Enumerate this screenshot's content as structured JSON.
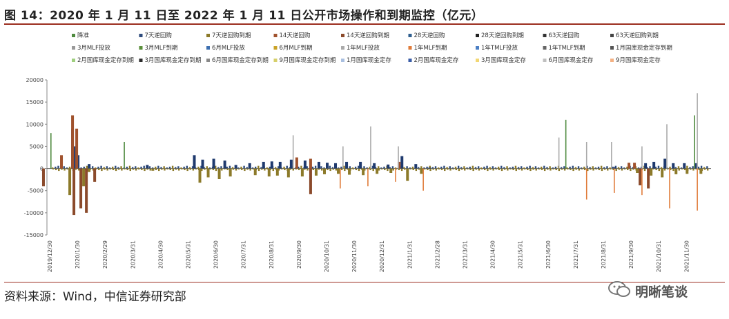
{
  "header": {
    "title": "图 14：2020 年 1 月 11 日至 2022 年 1 月 11 日公开市场操作和到期监控（亿元）"
  },
  "footer": {
    "source": "资料来源：Wind，中信证券研究部",
    "brand": "明晰笔谈"
  },
  "colors": {
    "rule": "#9b2c1e"
  },
  "chart_data": {
    "type": "bar",
    "title": "",
    "xlabel": "",
    "ylabel": "",
    "ylim": [
      -15000,
      20000
    ],
    "yticks": [
      20000,
      15000,
      10000,
      5000,
      0,
      -5000,
      -10000,
      -15000
    ],
    "grid": false,
    "legend_position": "top",
    "x_ticks": [
      "2019/12/30",
      "2020/1/30",
      "2020/2/29",
      "2020/3/31",
      "2020/4/30",
      "2020/5/31",
      "2020/6/30",
      "2020/7/31",
      "2020/8/31",
      "2020/9/30",
      "2020/10/31",
      "2020/11/30",
      "2020/12/31",
      "2021/1/31",
      "2021/2/28",
      "2021/3/31",
      "2021/4/30",
      "2021/5/31",
      "2021/6/30",
      "2021/7/31",
      "2021/8/31",
      "2021/9/30",
      "2021/10/31",
      "2021/11/30"
    ],
    "legend": [
      {
        "name": "降准",
        "color": "#4e8a3e",
        "marker": "square"
      },
      {
        "name": "7天逆回购",
        "color": "#2e4b7c",
        "marker": "square"
      },
      {
        "name": "7天逆回购到期",
        "color": "#8c7a2a",
        "marker": "square"
      },
      {
        "name": "14天逆回购",
        "color": "#a0522d",
        "marker": "square"
      },
      {
        "name": "14天逆回购到期",
        "color": "#8b4a2b",
        "marker": "square"
      },
      {
        "name": "28天逆回购",
        "color": "#2f5f8f",
        "marker": "square"
      },
      {
        "name": "28天逆回购到期",
        "color": "#222222",
        "marker": "square"
      },
      {
        "name": "63天逆回购",
        "color": "#333333",
        "marker": "square"
      },
      {
        "name": "63天逆回购到期",
        "color": "#444444",
        "marker": "square"
      },
      {
        "name": "3月MLF投放",
        "color": "#999999",
        "marker": "square"
      },
      {
        "name": "3月MLF到期",
        "color": "#5a8f3a",
        "marker": "square"
      },
      {
        "name": "6月MLF投放",
        "color": "#3d6fb0",
        "marker": "square"
      },
      {
        "name": "6月MLF到期",
        "color": "#c9a227",
        "marker": "square"
      },
      {
        "name": "1年MLF投放",
        "color": "#aaaaaa",
        "marker": "square"
      },
      {
        "name": "1年MLF到期",
        "color": "#e07b39",
        "marker": "square"
      },
      {
        "name": "1年TMLF投放",
        "color": "#4b7fc4",
        "marker": "square"
      },
      {
        "name": "1年TMLF到期",
        "color": "#666666",
        "marker": "square"
      },
      {
        "name": "1月国库现金定存到期",
        "color": "#555555",
        "marker": "square"
      },
      {
        "name": "2月国库现金定存到期",
        "color": "#9fcf7f",
        "marker": "square"
      },
      {
        "name": "3月国库现金定存到期",
        "color": "#2b2b2b",
        "marker": "square"
      },
      {
        "name": "6月国库现金定存到期",
        "color": "#888888",
        "marker": "square"
      },
      {
        "name": "9月国库现金定存到期",
        "color": "#d6cf6a",
        "marker": "square"
      },
      {
        "name": "1月国库现金定存",
        "color": "#a9bfe0",
        "marker": "square"
      },
      {
        "name": "2月国库现金定存",
        "color": "#3b5ea8",
        "marker": "square"
      },
      {
        "name": "3月国库现金定存",
        "color": "#f2d774",
        "marker": "square"
      },
      {
        "name": "6月国库现金定存",
        "color": "#bfbfbf",
        "marker": "square"
      },
      {
        "name": "9月国库现金定存",
        "color": "#f4b183",
        "marker": "square"
      }
    ],
    "series": [
      {
        "name": "7天逆回购",
        "color": "#1f3a6e",
        "points": [
          [
            -0.4,
            0
          ],
          [
            0.7,
            9000
          ],
          [
            0.8,
            5000
          ],
          [
            0.9,
            3000
          ],
          [
            1.3,
            1000
          ],
          [
            3.4,
            800
          ],
          [
            5.1,
            3000
          ],
          [
            5.4,
            2000
          ],
          [
            5.8,
            2200
          ],
          [
            6.2,
            1800
          ],
          [
            6.6,
            800
          ],
          [
            7.1,
            1200
          ],
          [
            7.6,
            1500
          ],
          [
            7.9,
            1600
          ],
          [
            8.2,
            1500
          ],
          [
            8.6,
            2000
          ],
          [
            9.1,
            1800
          ],
          [
            9.6,
            1500
          ],
          [
            9.9,
            1300
          ],
          [
            10.2,
            1200
          ],
          [
            10.6,
            1500
          ],
          [
            11.1,
            1500
          ],
          [
            11.6,
            1200
          ],
          [
            12.1,
            900
          ],
          [
            12.6,
            2800
          ],
          [
            13.1,
            1000
          ],
          [
            13.6,
            200
          ],
          [
            20.3,
            300
          ],
          [
            21.4,
            1200
          ],
          [
            21.7,
            1500
          ],
          [
            22.1,
            2200
          ],
          [
            22.4,
            1200
          ],
          [
            22.8,
            1200
          ],
          [
            23.2,
            1200
          ]
        ]
      },
      {
        "name": "7天逆回购到期",
        "color": "#8c7a2a",
        "points": [
          [
            0.6,
            -6000
          ],
          [
            1.1,
            -4000
          ],
          [
            1.3,
            -800
          ],
          [
            3.6,
            -500
          ],
          [
            5.3,
            -3200
          ],
          [
            5.6,
            -2000
          ],
          [
            6.0,
            -2400
          ],
          [
            6.4,
            -1800
          ],
          [
            7.3,
            -1500
          ],
          [
            7.8,
            -1800
          ],
          [
            8.1,
            -1600
          ],
          [
            8.5,
            -2000
          ],
          [
            9.0,
            -1800
          ],
          [
            9.5,
            -1600
          ],
          [
            9.8,
            -1300
          ],
          [
            10.3,
            -1200
          ],
          [
            10.7,
            -1400
          ],
          [
            11.2,
            -1500
          ],
          [
            11.7,
            -1200
          ],
          [
            12.2,
            -1000
          ],
          [
            12.8,
            -2800
          ],
          [
            13.3,
            -1200
          ],
          [
            21.1,
            -1000
          ],
          [
            21.6,
            -1600
          ],
          [
            22.0,
            -2000
          ],
          [
            22.5,
            -1300
          ],
          [
            22.9,
            -1200
          ],
          [
            23.4,
            -1200
          ]
        ]
      },
      {
        "name": "14天逆回购",
        "color": "#a0522d",
        "points": [
          [
            0.3,
            3000
          ],
          [
            0.7,
            12000
          ],
          [
            0.85,
            9000
          ],
          [
            8.8,
            2500
          ],
          [
            9.3,
            2200
          ],
          [
            12.5,
            1500
          ],
          [
            20.8,
            1300
          ],
          [
            21.0,
            1300
          ]
        ]
      },
      {
        "name": "14天逆回购到期",
        "color": "#8b4a2b",
        "points": [
          [
            -0.35,
            -4000
          ],
          [
            0.75,
            -10500
          ],
          [
            1.0,
            -9000
          ],
          [
            1.2,
            -10000
          ],
          [
            1.5,
            -3000
          ],
          [
            9.3,
            -5800
          ],
          [
            21.2,
            -3800
          ],
          [
            21.5,
            -4500
          ]
        ]
      },
      {
        "name": "1年MLF到期",
        "color": "#e07b39",
        "points": [
          [
            10.4,
            -4500
          ],
          [
            11.4,
            -4000
          ],
          [
            12.4,
            -3000
          ],
          [
            13.4,
            -5000
          ],
          [
            19.3,
            -7000
          ],
          [
            20.3,
            -5500
          ],
          [
            21.3,
            -6000
          ],
          [
            22.3,
            -9000
          ],
          [
            23.3,
            -9500
          ]
        ]
      },
      {
        "name": "1年MLF投放",
        "color": "#aaaaaa",
        "points": [
          [
            8.7,
            7500
          ],
          [
            10.5,
            5000
          ],
          [
            11.5,
            9500
          ],
          [
            12.5,
            5000
          ],
          [
            18.3,
            7000
          ],
          [
            19.3,
            6000
          ],
          [
            20.2,
            6000
          ],
          [
            21.3,
            5000
          ],
          [
            22.2,
            10000
          ],
          [
            23.3,
            17000
          ]
        ]
      },
      {
        "name": "降准",
        "color": "#4e8a3e",
        "points": [
          [
            -0.05,
            8000
          ],
          [
            2.6,
            6000
          ],
          [
            18.55,
            11000
          ],
          [
            23.2,
            12000
          ]
        ]
      }
    ]
  }
}
